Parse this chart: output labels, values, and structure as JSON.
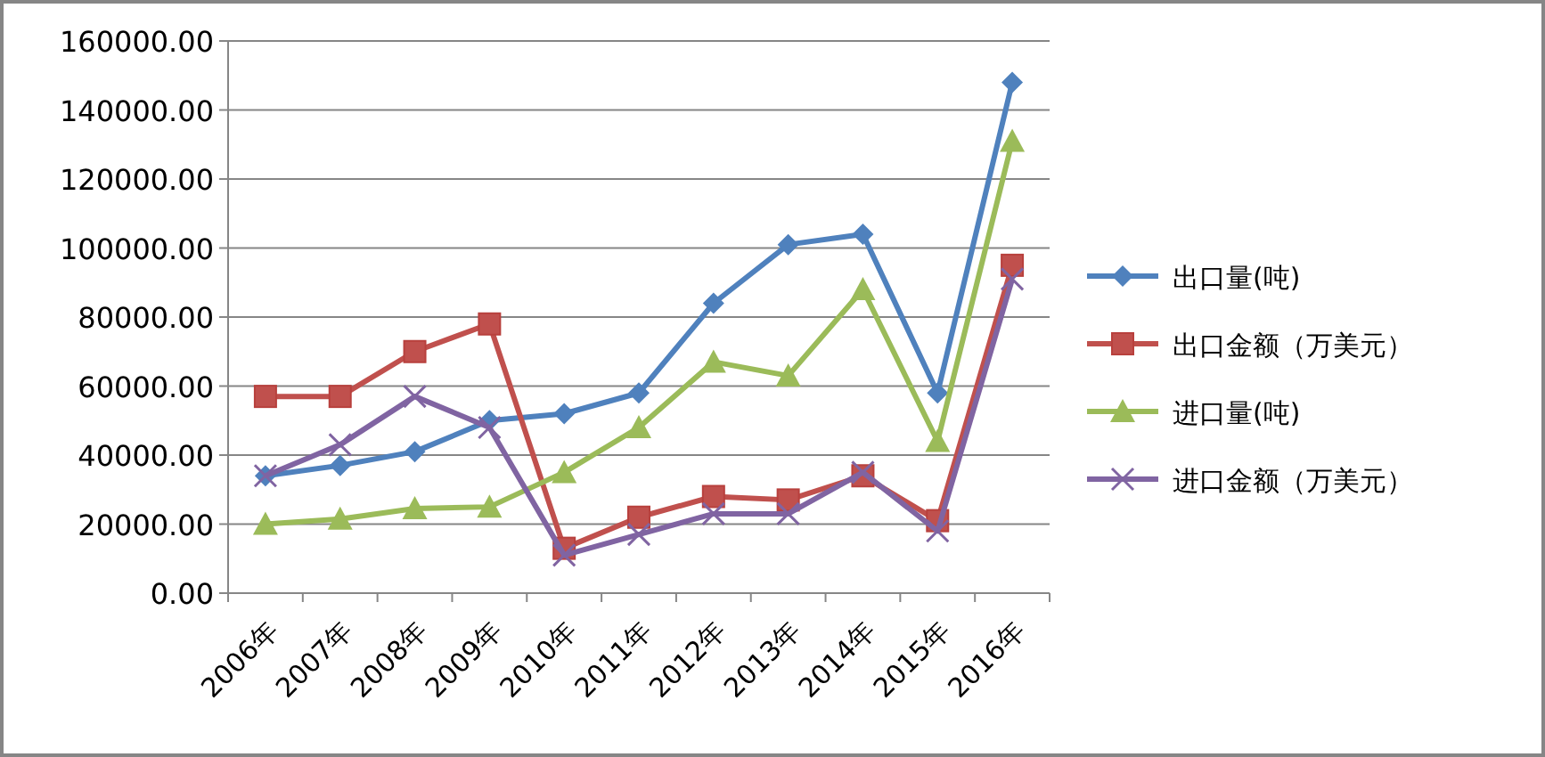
{
  "chart_data": {
    "type": "line",
    "categories": [
      "2006年",
      "2007年",
      "2008年",
      "2009年",
      "2010年",
      "2011年",
      "2012年",
      "2013年",
      "2014年",
      "2015年",
      "2016年"
    ],
    "series": [
      {
        "name": "出口量(吨)",
        "color": "#4f81bd",
        "marker": "diamond",
        "values": [
          34000,
          37000,
          41000,
          50000,
          52000,
          58000,
          84000,
          101000,
          104000,
          58000,
          148000
        ]
      },
      {
        "name": "出口金额（万美元）",
        "color": "#c0504d",
        "marker": "square",
        "values": [
          57000,
          57000,
          70000,
          78000,
          13000,
          22000,
          28000,
          27000,
          34000,
          21000,
          95000
        ]
      },
      {
        "name": "进口量(吨)",
        "color": "#9bbb59",
        "marker": "triangle",
        "values": [
          20000,
          21500,
          24500,
          25000,
          35000,
          48000,
          67000,
          63000,
          88000,
          44000,
          131000
        ]
      },
      {
        "name": "进口金额（万美元）",
        "color": "#8064a2",
        "marker": "cross",
        "values": [
          34000,
          43000,
          57000,
          48000,
          11000,
          17000,
          23000,
          23000,
          35000,
          18000,
          91000
        ]
      }
    ],
    "ylim": [
      0,
      160000
    ],
    "yticks": [
      {
        "value": 0,
        "label": "0.00"
      },
      {
        "value": 20000,
        "label": "20000.00"
      },
      {
        "value": 40000,
        "label": "40000.00"
      },
      {
        "value": 60000,
        "label": "60000.00"
      },
      {
        "value": 80000,
        "label": "80000.00"
      },
      {
        "value": 100000,
        "label": "100000.00"
      },
      {
        "value": 120000,
        "label": "120000.00"
      },
      {
        "value": 140000,
        "label": "140000.00"
      },
      {
        "value": 160000,
        "label": "160000.00"
      }
    ],
    "grid": "y",
    "legend": "right"
  }
}
